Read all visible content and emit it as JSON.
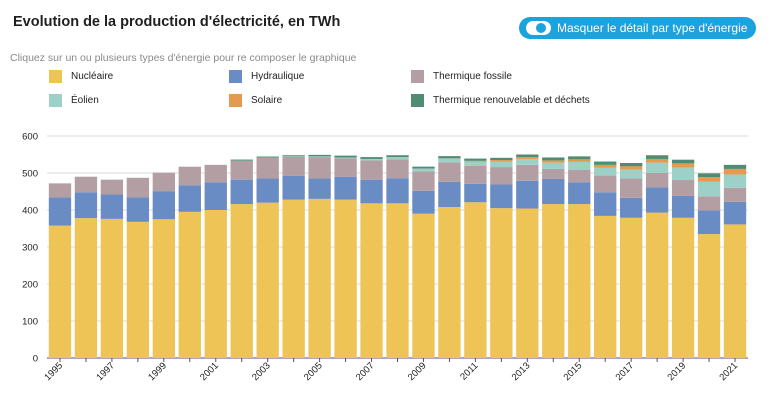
{
  "header": {
    "title": "Evolution de la production d'électricité, en TWh",
    "toggle_label": "Masquer le détail par type d'énergie",
    "hint": "Cliquez sur un ou plusieurs types d'énergie pour re composer le graphique"
  },
  "colors": {
    "accent": "#1aa3dc"
  },
  "legend": [
    {
      "label": "Nucléaire",
      "color": "#efc456"
    },
    {
      "label": "Hydraulique",
      "color": "#6a8cc4"
    },
    {
      "label": "Thermique fossile",
      "color": "#b39ea4"
    },
    {
      "label": "Éolien",
      "color": "#9dd1c8"
    },
    {
      "label": "Solaire",
      "color": "#e59a4f"
    },
    {
      "label": "Thermique renouvelable et déchets",
      "color": "#4f8c73"
    }
  ],
  "chart_data": {
    "type": "bar",
    "stacked": true,
    "grid": true,
    "ylim": [
      0,
      600
    ],
    "yticks": [
      "0",
      "100",
      "200",
      "300",
      "400",
      "500",
      "600"
    ],
    "xticks": [
      "1995",
      "1997",
      "1999",
      "2001",
      "2003",
      "2005",
      "2007",
      "2009",
      "2011",
      "2013",
      "2015",
      "2017",
      "2019",
      "2021"
    ],
    "categories": [
      1995,
      1996,
      1997,
      1998,
      1999,
      2000,
      2001,
      2002,
      2003,
      2004,
      2005,
      2006,
      2007,
      2008,
      2009,
      2010,
      2011,
      2012,
      2013,
      2014,
      2015,
      2016,
      2017,
      2018,
      2019,
      2020,
      2021
    ],
    "series": [
      {
        "name": "Nucléaire",
        "color": "#efc456",
        "values": [
          358,
          378,
          376,
          368,
          375,
          395,
          400,
          416,
          420,
          428,
          430,
          428,
          418,
          418,
          390,
          408,
          421,
          405,
          404,
          416,
          416,
          384,
          379,
          393,
          379,
          335,
          361
        ]
      },
      {
        "name": "Hydraulique",
        "color": "#6a8cc4",
        "values": [
          76,
          70,
          66,
          66,
          76,
          72,
          75,
          66,
          65,
          64,
          55,
          62,
          64,
          68,
          62,
          68,
          50,
          64,
          75,
          68,
          59,
          64,
          54,
          68,
          59,
          64,
          61
        ]
      },
      {
        "name": "Thermique fossile",
        "color": "#b39ea4",
        "values": [
          38,
          42,
          40,
          53,
          50,
          50,
          47,
          51,
          56,
          52,
          58,
          50,
          52,
          51,
          52,
          53,
          48,
          47,
          43,
          27,
          34,
          45,
          52,
          39,
          43,
          38,
          38
        ]
      },
      {
        "name": "Éolien",
        "color": "#9dd1c8",
        "values": [
          0,
          0,
          0,
          0,
          0,
          0,
          0,
          0.3,
          0.5,
          1,
          2,
          2,
          4,
          6,
          8,
          10,
          12,
          15,
          16,
          17,
          21,
          21,
          24,
          28,
          34,
          40,
          36
        ]
      },
      {
        "name": "Solaire",
        "color": "#e59a4f",
        "values": [
          0,
          0,
          0,
          0,
          0,
          0,
          0,
          0,
          0,
          0,
          0,
          0,
          0,
          0,
          0.2,
          0.6,
          2,
          4,
          5,
          6,
          7,
          8,
          9,
          10,
          11,
          12,
          15
        ]
      },
      {
        "name": "Thermique renouvelable et déchets",
        "color": "#4f8c73",
        "values": [
          0,
          0,
          0,
          0,
          0,
          0,
          0,
          3,
          3,
          3,
          4,
          5,
          5,
          5,
          5,
          6,
          6,
          6,
          7,
          8,
          8,
          9,
          9,
          10,
          10,
          10,
          11
        ]
      }
    ]
  }
}
